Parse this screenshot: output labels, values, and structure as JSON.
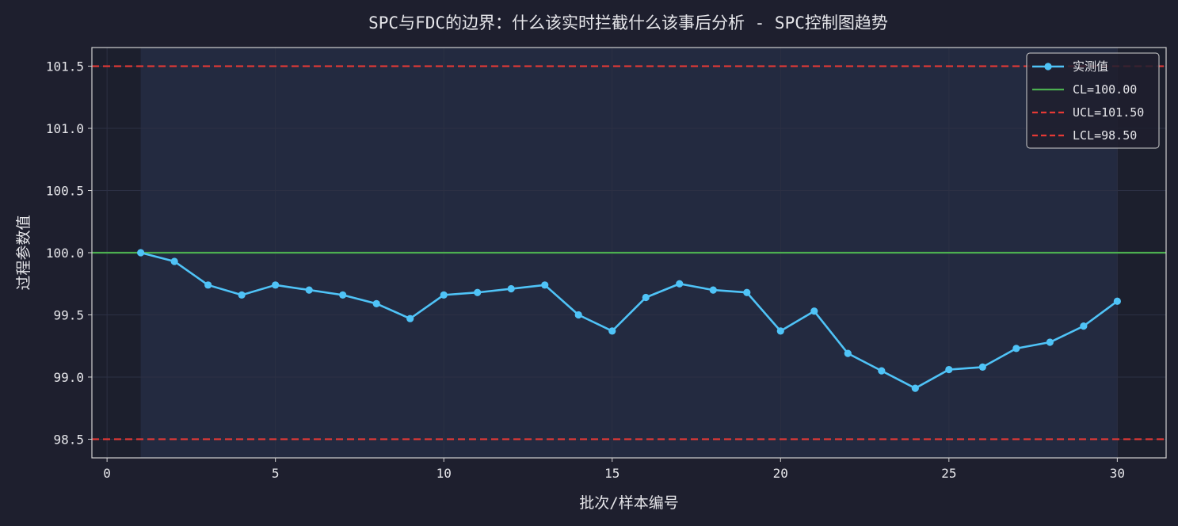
{
  "colors": {
    "page_bg": "#1e1f2e",
    "plot_bg": "#1c1f2d",
    "highlight_band": "#232a40",
    "measured": "#4fc3f7",
    "cl": "#4caf50",
    "limits": "#e53935",
    "axis": "#d0d0d0",
    "text": "#e6e6ea",
    "grid": "#2c3044"
  },
  "chart_data": {
    "type": "line",
    "title": "SPC与FDC的边界：什么该实时拦截什么该事后分析 - SPC控制图趋势",
    "xlabel": "批次/样本编号",
    "ylabel": "过程参数值",
    "xlim": [
      -0.45,
      31.45
    ],
    "ylim": [
      98.35,
      101.65
    ],
    "xticks": [
      0,
      5,
      10,
      15,
      20,
      25,
      30
    ],
    "yticks": [
      98.5,
      99.0,
      99.5,
      100.0,
      100.5,
      101.0,
      101.5
    ],
    "xtick_labels": [
      "0",
      "5",
      "10",
      "15",
      "20",
      "25",
      "30"
    ],
    "ytick_labels": [
      "98.5",
      "99.0",
      "99.5",
      "100.0",
      "100.5",
      "101.0",
      "101.5"
    ],
    "grid": true,
    "highlight_range": [
      1,
      30
    ],
    "legend_position": "top-right",
    "series": [
      {
        "name": "实测值",
        "style": "line-marker",
        "x": [
          1,
          2,
          3,
          4,
          5,
          6,
          7,
          8,
          9,
          10,
          11,
          12,
          13,
          14,
          15,
          16,
          17,
          18,
          19,
          20,
          21,
          22,
          23,
          24,
          25,
          26,
          27,
          28,
          29,
          30
        ],
        "y": [
          100.0,
          99.93,
          99.74,
          99.66,
          99.74,
          99.7,
          99.66,
          99.59,
          99.47,
          99.66,
          99.68,
          99.71,
          99.74,
          99.5,
          99.37,
          99.64,
          99.75,
          99.7,
          99.68,
          99.37,
          99.53,
          99.19,
          99.05,
          98.91,
          99.06,
          99.08,
          99.23,
          99.28,
          99.41,
          99.61
        ]
      }
    ],
    "reference_lines": [
      {
        "name": "CL=100.00",
        "value": 100.0,
        "style": "solid",
        "color_key": "cl"
      },
      {
        "name": "UCL=101.50",
        "value": 101.5,
        "style": "dashed",
        "color_key": "limits"
      },
      {
        "name": "LCL=98.50",
        "value": 98.5,
        "style": "dashed",
        "color_key": "limits"
      }
    ]
  }
}
